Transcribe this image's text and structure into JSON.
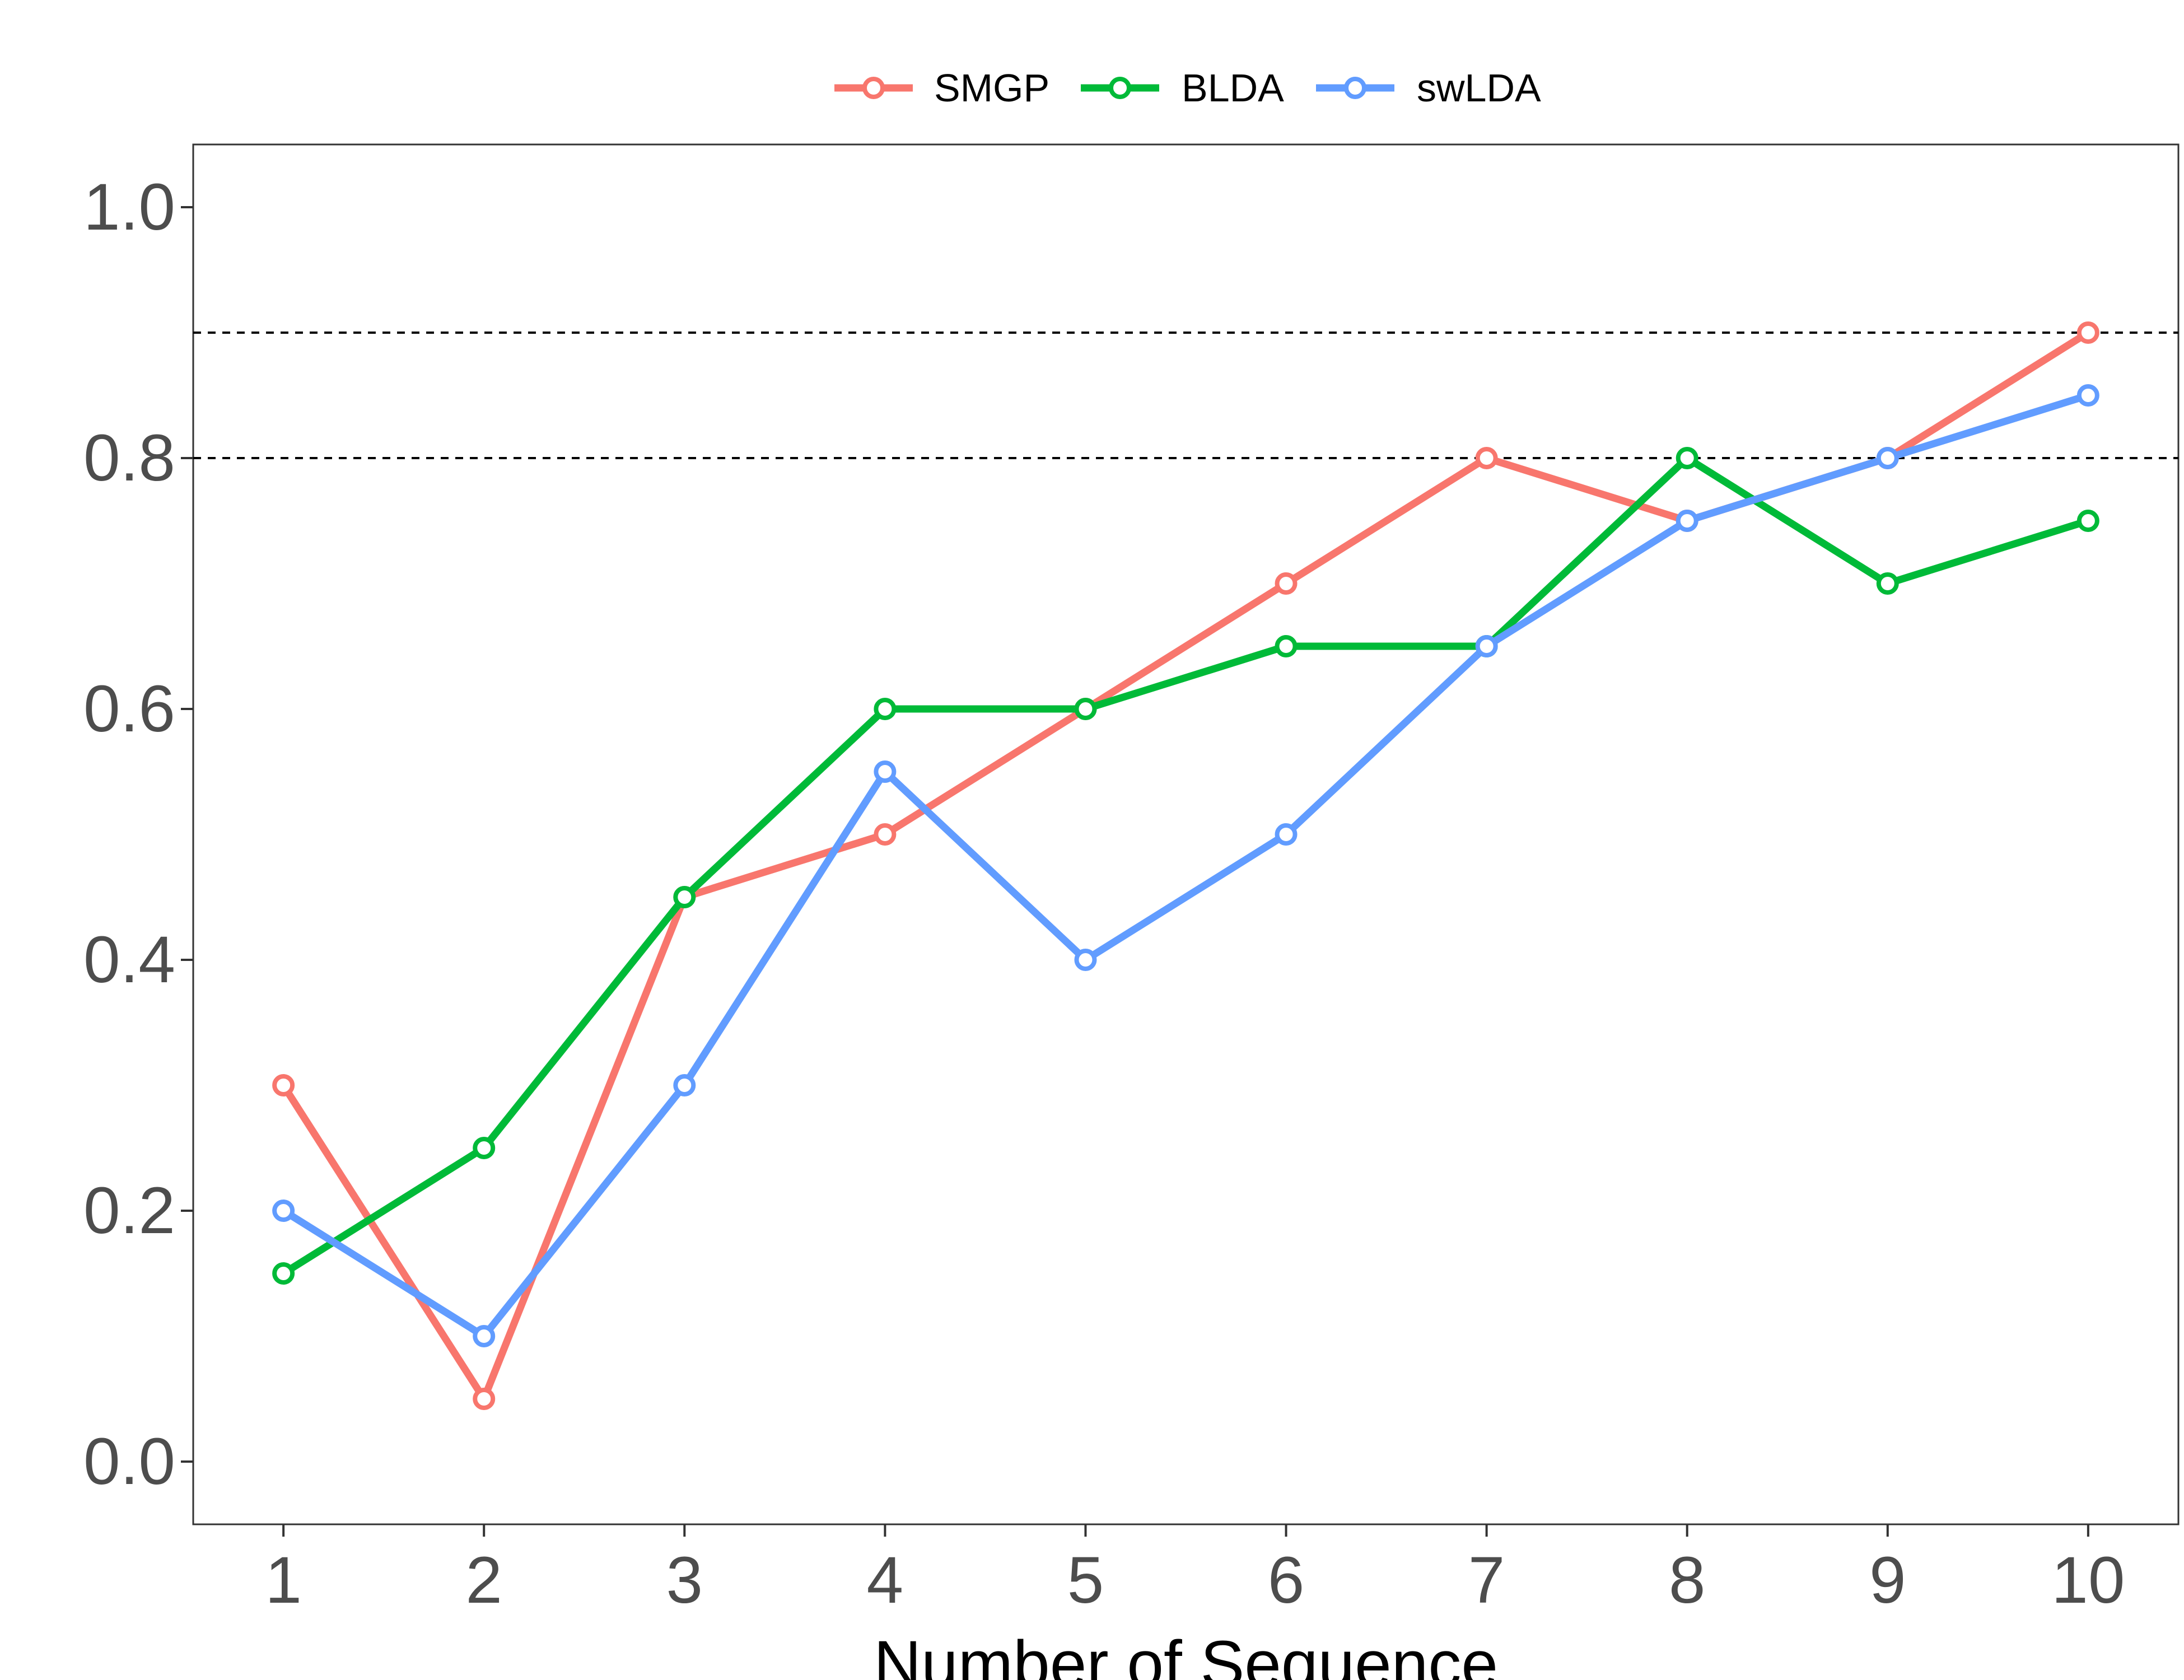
{
  "chart_data": {
    "type": "line",
    "title": "",
    "xlabel": "Number of Sequence",
    "ylabel": "",
    "x": [
      1,
      2,
      3,
      4,
      5,
      6,
      7,
      8,
      9,
      10
    ],
    "xlim": [
      0.55,
      10.45
    ],
    "ylim": [
      -0.05,
      1.05
    ],
    "y_ticks": [
      "0.0",
      "0.2",
      "0.4",
      "0.6",
      "0.8",
      "1.0"
    ],
    "x_ticks": [
      "1",
      "2",
      "3",
      "4",
      "5",
      "6",
      "7",
      "8",
      "9",
      "10"
    ],
    "reference_lines": [
      0.8,
      0.9
    ],
    "grid": false,
    "legend_position": "top",
    "series": [
      {
        "name": "SMGP",
        "color": "#F8766D",
        "values": [
          0.3,
          0.05,
          0.45,
          0.5,
          0.6,
          0.7,
          0.8,
          0.75,
          0.8,
          0.9
        ]
      },
      {
        "name": "BLDA",
        "color": "#00BA38",
        "values": [
          0.15,
          0.25,
          0.45,
          0.6,
          0.6,
          0.65,
          0.65,
          0.8,
          0.7,
          0.75
        ]
      },
      {
        "name": "swLDA",
        "color": "#619CFF",
        "values": [
          0.2,
          0.1,
          0.3,
          0.55,
          0.4,
          0.5,
          0.65,
          0.75,
          0.8,
          0.85
        ]
      }
    ]
  }
}
